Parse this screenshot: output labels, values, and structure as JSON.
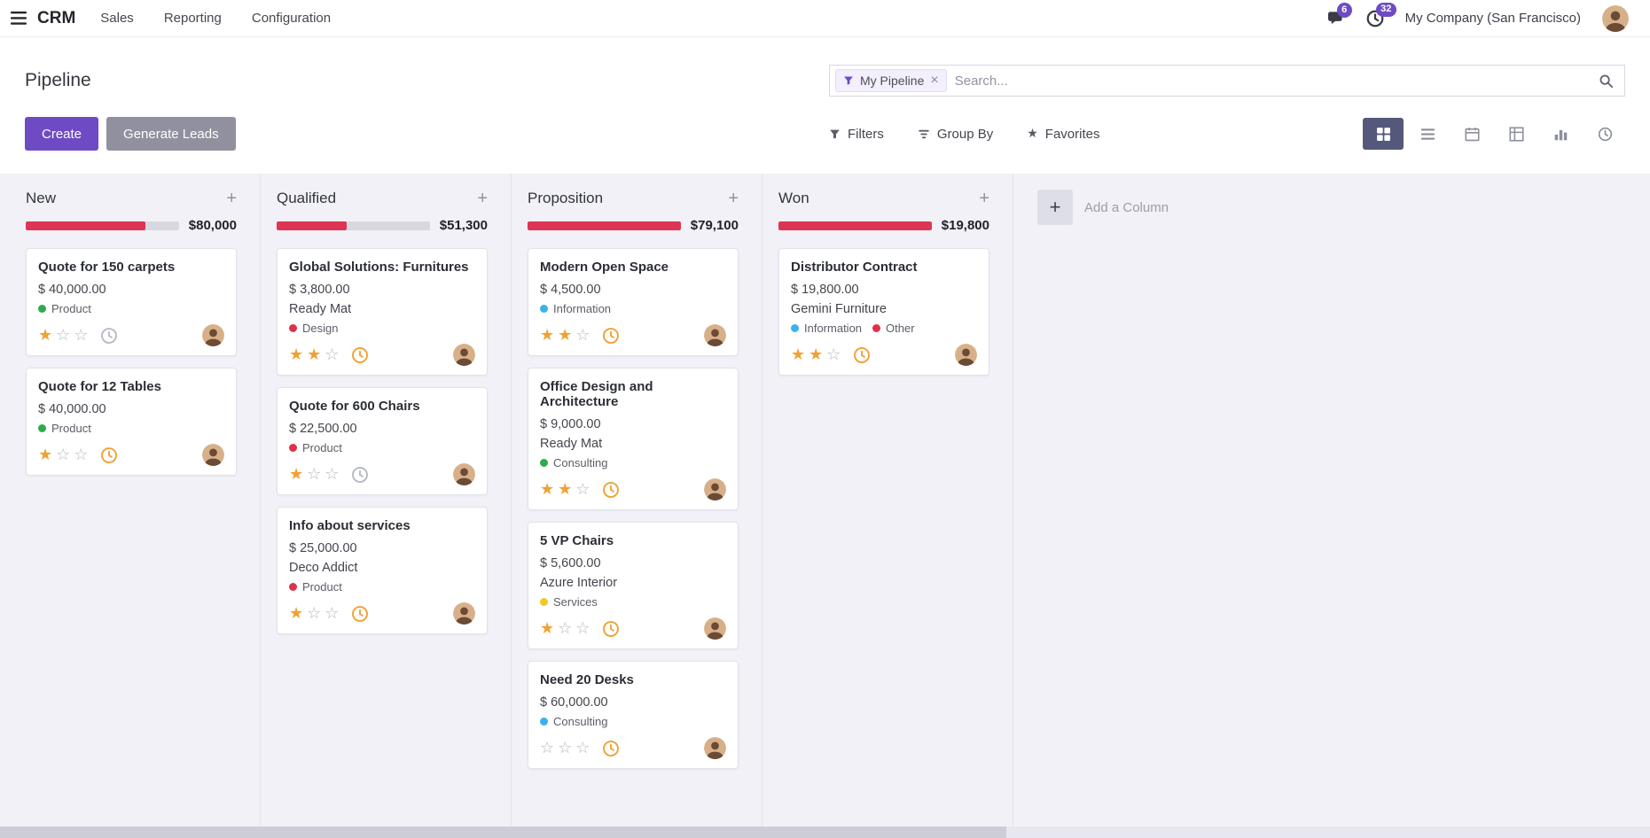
{
  "navbar": {
    "app_name": "CRM",
    "menus": [
      {
        "label": "Sales"
      },
      {
        "label": "Reporting"
      },
      {
        "label": "Configuration"
      }
    ],
    "messages_badge": "6",
    "activities_badge": "32",
    "company_switcher": "My Company (San Francisco)"
  },
  "control_panel": {
    "title": "Pipeline",
    "search": {
      "facet_label": "My Pipeline",
      "placeholder": "Search..."
    },
    "buttons": {
      "create": "Create",
      "generate_leads": "Generate Leads"
    },
    "search_options": {
      "filters": "Filters",
      "group_by": "Group By",
      "favorites": "Favorites"
    }
  },
  "view_switcher": {
    "active_view": "kanban",
    "views": [
      "kanban",
      "list",
      "calendar",
      "pivot",
      "graph",
      "activity"
    ]
  },
  "board": {
    "add_column": "Add a Column",
    "columns": [
      {
        "title": "New",
        "amount": "$80,000",
        "progress_pct": 78,
        "cards": [
          {
            "title": "Quote for 150 carpets",
            "revenue": "$ 40,000.00",
            "tags": [
              {
                "label": "Product",
                "color": "green"
              }
            ],
            "stars": 1,
            "clock": "none"
          },
          {
            "title": "Quote for 12 Tables",
            "revenue": "$ 40,000.00",
            "tags": [
              {
                "label": "Product",
                "color": "green"
              }
            ],
            "stars": 1,
            "clock": "warning"
          }
        ]
      },
      {
        "title": "Qualified",
        "amount": "$51,300",
        "progress_pct": 46,
        "cards": [
          {
            "title": "Global Solutions: Furnitures",
            "revenue": "$ 3,800.00",
            "partner": "Ready Mat",
            "tags": [
              {
                "label": "Design",
                "color": "red"
              }
            ],
            "stars": 2,
            "clock": "warning"
          },
          {
            "title": "Quote for 600 Chairs",
            "revenue": "$ 22,500.00",
            "tags": [
              {
                "label": "Product",
                "color": "red"
              }
            ],
            "stars": 1,
            "clock": "none"
          },
          {
            "title": "Info about services",
            "revenue": "$ 25,000.00",
            "partner": "Deco Addict",
            "tags": [
              {
                "label": "Product",
                "color": "red"
              }
            ],
            "stars": 1,
            "clock": "warning"
          }
        ]
      },
      {
        "title": "Proposition",
        "amount": "$79,100",
        "progress_pct": 100,
        "cards": [
          {
            "title": "Modern Open Space",
            "revenue": "$ 4,500.00",
            "tags": [
              {
                "label": "Information",
                "color": "blue"
              }
            ],
            "stars": 2,
            "clock": "warning"
          },
          {
            "title": "Office Design and Architecture",
            "revenue": "$ 9,000.00",
            "partner": "Ready Mat",
            "tags": [
              {
                "label": "Consulting",
                "color": "green"
              }
            ],
            "stars": 2,
            "clock": "warning"
          },
          {
            "title": "5 VP Chairs",
            "revenue": "$ 5,600.00",
            "partner": "Azure Interior",
            "tags": [
              {
                "label": "Services",
                "color": "yellow"
              }
            ],
            "stars": 1,
            "clock": "warning"
          },
          {
            "title": "Need 20 Desks",
            "revenue": "$ 60,000.00",
            "tags": [
              {
                "label": "Consulting",
                "color": "blue"
              }
            ],
            "stars": 0,
            "clock": "warning"
          }
        ]
      },
      {
        "title": "Won",
        "amount": "$19,800",
        "progress_pct": 100,
        "cards": [
          {
            "title": "Distributor Contract",
            "revenue": "$ 19,800.00",
            "partner": "Gemini Furniture",
            "tags": [
              {
                "label": "Information",
                "color": "blue"
              },
              {
                "label": "Other",
                "color": "red"
              }
            ],
            "stars": 2,
            "clock": "warning"
          }
        ]
      }
    ]
  },
  "icons": {
    "apps-menu": "hamburger",
    "messages": "speech-bubble",
    "activities": "clock",
    "search": "magnifier",
    "filter-funnel": "funnel",
    "group-by": "indented-bars",
    "favorites": "star",
    "view-kanban": "grid-2x2",
    "view-list": "list-lines",
    "view-calendar": "calendar",
    "view-pivot": "table-grid",
    "view-graph": "bar-chart",
    "view-activity": "clock",
    "priority": "star",
    "activity-state": "clock"
  },
  "colors": {
    "primary": "#6e4bc4",
    "progress_red": "#dc3555",
    "star_orange": "#f0a132",
    "tag_green": "#2fab4f",
    "tag_red": "#e0314b",
    "tag_blue": "#38b3ec",
    "tag_yellow": "#f0c929"
  }
}
